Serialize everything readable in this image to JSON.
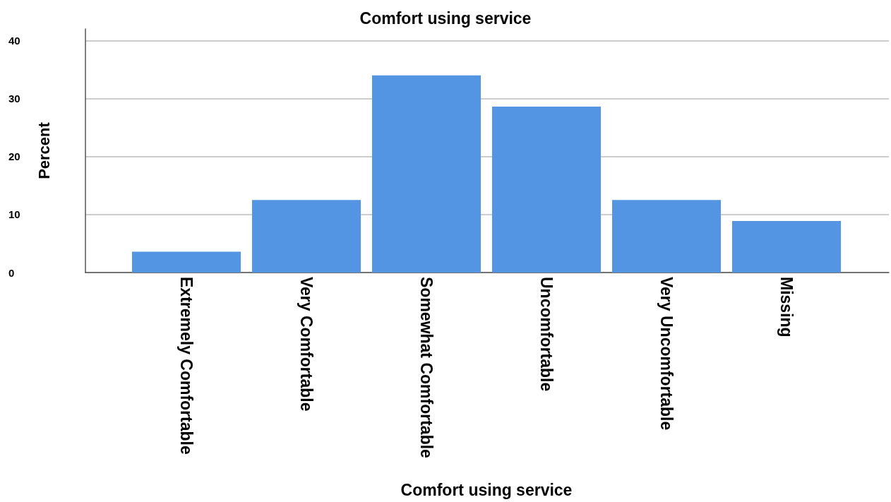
{
  "chart_data": {
    "type": "bar",
    "title": "Comfort using service",
    "xlabel": "Comfort using service",
    "ylabel": "Percent",
    "categories": [
      "Extremely Comfortable",
      "Very Comfortable",
      "Somewhat Comfortable",
      "Uncomfortable",
      "Very Uncomfortable",
      "Missing"
    ],
    "values": [
      3.6,
      12.5,
      34.0,
      28.6,
      12.5,
      8.9
    ],
    "color": "#5495e3",
    "ylim": [
      0,
      42
    ],
    "yticks": [
      0,
      10,
      20,
      30,
      40
    ],
    "grid": "y"
  }
}
